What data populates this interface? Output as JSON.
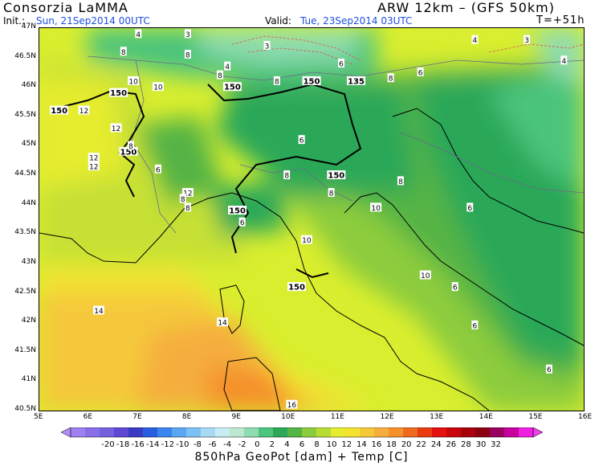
{
  "header": {
    "producer": "Consorzia LaMMA",
    "model": "ARW 12km  –  (GFS 50km)",
    "init_label": "Init.:",
    "init_value": "Sun, 21Sep2014 00UTC",
    "valid_label": "Valid:",
    "valid_value": "Tue, 23Sep2014 03UTC",
    "forecast_step": "T=+51h"
  },
  "colors": {
    "header_blue": "#1f4fe0",
    "frame": "#000000"
  },
  "axes": {
    "lat_labels": [
      "47N",
      "46.5N",
      "46N",
      "45.5N",
      "45N",
      "44.5N",
      "44N",
      "43.5N",
      "43N",
      "42.5N",
      "42N",
      "41.5N",
      "41N",
      "40.5N"
    ],
    "lon_labels": [
      "5E",
      "6E",
      "7E",
      "8E",
      "9E",
      "10E",
      "11E",
      "12E",
      "13E",
      "14E",
      "15E",
      "16E"
    ]
  },
  "contour_labels": [
    {
      "text": "150",
      "lon": 5.4,
      "lat": 45.6
    },
    {
      "text": "150",
      "lon": 6.6,
      "lat": 45.9
    },
    {
      "text": "150",
      "lon": 8.9,
      "lat": 46.0
    },
    {
      "text": "150",
      "lon": 10.5,
      "lat": 46.1
    },
    {
      "text": "135",
      "lon": 11.4,
      "lat": 46.1
    },
    {
      "text": "150",
      "lon": 6.8,
      "lat": 44.9
    },
    {
      "text": "150",
      "lon": 11.0,
      "lat": 44.5
    },
    {
      "text": "150",
      "lon": 9.0,
      "lat": 43.9
    },
    {
      "text": "150",
      "lon": 10.2,
      "lat": 42.6
    }
  ],
  "temperature_labels": [
    {
      "text": "4",
      "lon": 7.0,
      "lat": 46.9
    },
    {
      "text": "3",
      "lon": 8.0,
      "lat": 46.9
    },
    {
      "text": "3",
      "lon": 9.6,
      "lat": 46.7
    },
    {
      "text": "8",
      "lon": 6.7,
      "lat": 46.6
    },
    {
      "text": "8",
      "lon": 8.0,
      "lat": 46.55
    },
    {
      "text": "4",
      "lon": 8.8,
      "lat": 46.35
    },
    {
      "text": "6",
      "lon": 11.1,
      "lat": 46.4
    },
    {
      "text": "8",
      "lon": 8.65,
      "lat": 46.2
    },
    {
      "text": "8",
      "lon": 9.8,
      "lat": 46.1
    },
    {
      "text": "8",
      "lon": 12.1,
      "lat": 46.15
    },
    {
      "text": "6",
      "lon": 12.7,
      "lat": 46.25
    },
    {
      "text": "4",
      "lon": 13.8,
      "lat": 46.8
    },
    {
      "text": "3",
      "lon": 14.85,
      "lat": 46.8
    },
    {
      "text": "4",
      "lon": 15.6,
      "lat": 46.45
    },
    {
      "text": "10",
      "lon": 6.9,
      "lat": 46.1
    },
    {
      "text": "10",
      "lon": 7.4,
      "lat": 46.0
    },
    {
      "text": "12",
      "lon": 5.9,
      "lat": 45.6
    },
    {
      "text": "12",
      "lon": 6.55,
      "lat": 45.3
    },
    {
      "text": "12",
      "lon": 6.1,
      "lat": 44.8
    },
    {
      "text": "12",
      "lon": 6.1,
      "lat": 44.65
    },
    {
      "text": "8",
      "lon": 6.85,
      "lat": 45.0
    },
    {
      "text": "6",
      "lon": 7.4,
      "lat": 44.6
    },
    {
      "text": "6",
      "lon": 10.3,
      "lat": 45.1
    },
    {
      "text": "8",
      "lon": 10.0,
      "lat": 44.5
    },
    {
      "text": "8",
      "lon": 12.3,
      "lat": 44.4
    },
    {
      "text": "8",
      "lon": 10.9,
      "lat": 44.2
    },
    {
      "text": "12",
      "lon": 8.0,
      "lat": 44.2
    },
    {
      "text": "8",
      "lon": 7.9,
      "lat": 44.1
    },
    {
      "text": "8",
      "lon": 8.0,
      "lat": 43.95
    },
    {
      "text": "6",
      "lon": 9.1,
      "lat": 43.7
    },
    {
      "text": "6",
      "lon": 13.7,
      "lat": 43.95
    },
    {
      "text": "10",
      "lon": 11.8,
      "lat": 43.95
    },
    {
      "text": "10",
      "lon": 10.4,
      "lat": 43.4
    },
    {
      "text": "10",
      "lon": 12.8,
      "lat": 42.8
    },
    {
      "text": "6",
      "lon": 13.4,
      "lat": 42.6
    },
    {
      "text": "14",
      "lon": 6.2,
      "lat": 42.2
    },
    {
      "text": "14",
      "lon": 8.7,
      "lat": 42.0
    },
    {
      "text": "6",
      "lon": 13.8,
      "lat": 41.95
    },
    {
      "text": "6",
      "lon": 15.3,
      "lat": 41.2
    },
    {
      "text": "16",
      "lon": 10.1,
      "lat": 40.6
    }
  ],
  "legend": {
    "colors": [
      "#a07ff0",
      "#8a6ee8",
      "#7560e0",
      "#5e48d4",
      "#3a3ac4",
      "#2a5ee0",
      "#3a86ee",
      "#5aa6f2",
      "#7ac2f4",
      "#a8daf6",
      "#c8ecf4",
      "#bde8d0",
      "#8edcb0",
      "#4cc47c",
      "#2ca858",
      "#54b444",
      "#8ccc3c",
      "#b8dc34",
      "#e6ec2e",
      "#f4e230",
      "#f5c83a",
      "#f5ae3c",
      "#f5902c",
      "#f06a1e",
      "#e83c10",
      "#e41010",
      "#c8060c",
      "#a8000c",
      "#8a0010",
      "#9a0060",
      "#c800a0",
      "#f020e0"
    ],
    "tick_labels": [
      "-20",
      "-18",
      "-16",
      "-14",
      "-12",
      "-10",
      "-8",
      "-6",
      "-4",
      "-2",
      "0",
      "2",
      "4",
      "6",
      "8",
      "10",
      "12",
      "14",
      "16",
      "18",
      "20",
      "22",
      "24",
      "26",
      "28",
      "30",
      "32"
    ],
    "caption": "850hPa GeoPot [dam] + Temp [C]"
  }
}
